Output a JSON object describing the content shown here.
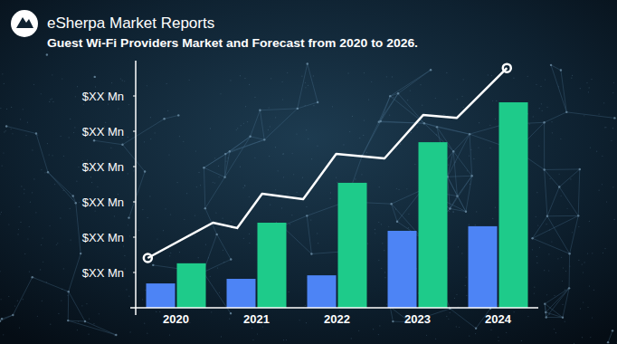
{
  "chart_data": {
    "type": "bar",
    "title": "Guest Wi-Fi Providers Market and Forecast from 2020 to 2026.",
    "subtitle": "eSherpa Market Reports",
    "categories": [
      "2020",
      "2021",
      "2022",
      "2023",
      "2024"
    ],
    "series": [
      {
        "color": "#4d84f5",
        "values": [
          0.69,
          0.82,
          0.92,
          2.18,
          2.31
        ]
      },
      {
        "color": "#1ecb8a",
        "values": [
          1.26,
          2.41,
          3.54,
          4.69,
          5.82
        ]
      },
      {
        "type": "line",
        "color": "#ffffff",
        "marker": "circle",
        "x": [
          -0.35,
          0.46,
          0.76,
          1.07,
          1.58,
          1.99,
          2.59,
          3.07,
          3.49,
          4.11
        ],
        "values": [
          1.41,
          2.41,
          2.26,
          3.23,
          3.08,
          4.36,
          4.23,
          5.46,
          5.38,
          6.79
        ]
      }
    ],
    "ylim": [
      0,
      7
    ],
    "yticks": [
      {
        "value": 1,
        "label": "$XX Mn"
      },
      {
        "value": 2,
        "label": "$XX Mn"
      },
      {
        "value": 3,
        "label": "$XX Mn"
      },
      {
        "value": 4,
        "label": "$XX Mn"
      },
      {
        "value": 5,
        "label": "$XX Mn"
      },
      {
        "value": 6,
        "label": "$XX Mn"
      }
    ],
    "grid": false
  }
}
